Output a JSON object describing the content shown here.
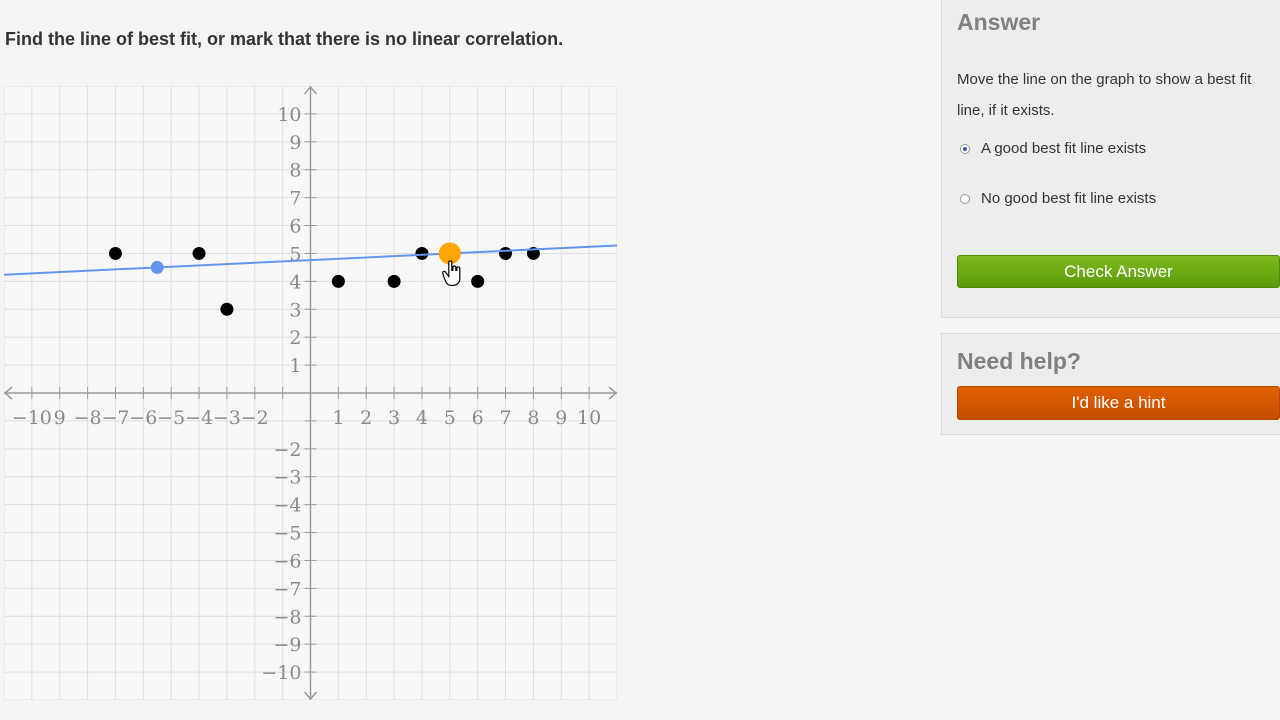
{
  "question": "Find the line of best fit, or mark that there is no linear correlation.",
  "answer_panel": {
    "title": "Answer",
    "instructions": "Move the line on the graph to show a best fit line, if it exists.",
    "options": [
      {
        "label": "A good best fit line exists",
        "selected": true
      },
      {
        "label": "No good best fit line exists",
        "selected": false
      }
    ],
    "check_label": "Check Answer"
  },
  "help_panel": {
    "title": "Need help?",
    "hint_label": "I'd like a hint"
  },
  "chart_data": {
    "type": "scatter",
    "xlim": [
      -11,
      11
    ],
    "ylim": [
      -11,
      11
    ],
    "grid": true,
    "x_tick_labels": [
      "−10",
      "9",
      "−8",
      "−7",
      "−6",
      "−5",
      "−4",
      "−3",
      "−2",
      "1",
      "2",
      "3",
      "4",
      "5",
      "6",
      "7",
      "8",
      "9",
      "10"
    ],
    "y_tick_labels": [
      "10",
      "9",
      "8",
      "7",
      "6",
      "5",
      "4",
      "3",
      "2",
      "1",
      "−2",
      "−3",
      "−4",
      "−5",
      "−6",
      "−7",
      "−8",
      "−9",
      "−10"
    ],
    "points": [
      {
        "x": -7,
        "y": 5
      },
      {
        "x": -4,
        "y": 5
      },
      {
        "x": -3,
        "y": 3
      },
      {
        "x": 1,
        "y": 4
      },
      {
        "x": 3,
        "y": 4
      },
      {
        "x": 4,
        "y": 5
      },
      {
        "x": 6,
        "y": 4
      },
      {
        "x": 7,
        "y": 5
      },
      {
        "x": 8,
        "y": 5
      }
    ],
    "fit_line": {
      "handle_1": {
        "x": -5.5,
        "y": 4.5
      },
      "handle_2": {
        "x": 5,
        "y": 5
      },
      "handle_2_active": true
    },
    "colors": {
      "line": "#6495ed",
      "handle": "#6495ed",
      "active_handle": "#ffa500",
      "points": "#000000",
      "grid": "#dedede",
      "axis": "#999999"
    }
  }
}
